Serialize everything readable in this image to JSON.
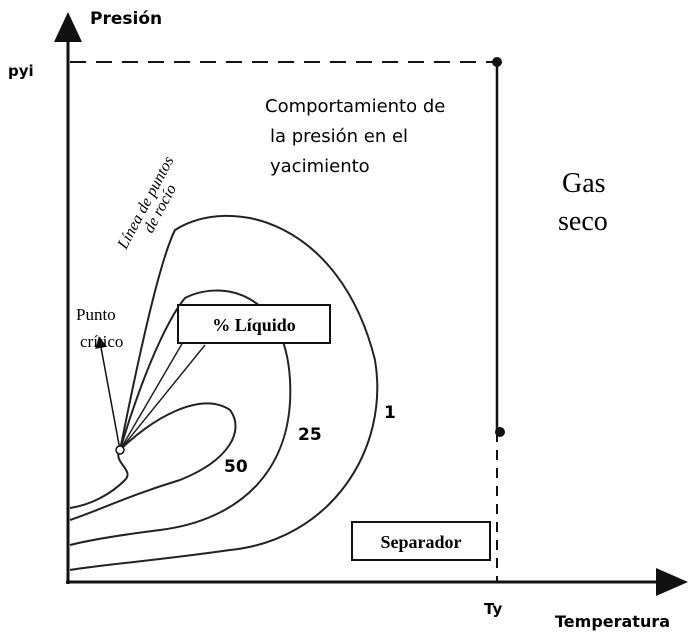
{
  "axes": {
    "y_label": "Presión",
    "y_mark": "pyi",
    "x_label": "Temperatura",
    "x_mark": "Ty"
  },
  "annotation": {
    "lines": [
      "Comportamiento de",
      "la presión en el",
      "yacimiento"
    ]
  },
  "region": {
    "lines": [
      "Gas",
      "seco"
    ]
  },
  "dew_line": {
    "lines": [
      "Línea de puntos",
      "de rocío"
    ]
  },
  "critical_point": {
    "lines": [
      "Punto",
      "crítico"
    ]
  },
  "liquid_box": "% Líquido",
  "curves": [
    {
      "label": "1"
    },
    {
      "label": "25"
    },
    {
      "label": "50"
    }
  ],
  "separator_box": "Separador"
}
